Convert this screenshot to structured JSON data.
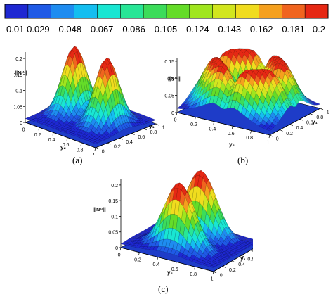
{
  "colorbar": {
    "ticks": [
      "0.01",
      "0.029",
      "0.048",
      "0.067",
      "0.086",
      "0.105",
      "0.124",
      "0.143",
      "0.162",
      "0.181",
      "0.2"
    ],
    "colors": [
      "#1e28d2",
      "#1f5ae6",
      "#1e8cf0",
      "#14bef0",
      "#19e6d2",
      "#28e696",
      "#3cdc5a",
      "#64dc28",
      "#a0e61e",
      "#d2e61e",
      "#f0dc1e",
      "#f5a01e",
      "#f0641e",
      "#e62814"
    ]
  },
  "chart_data": [
    {
      "type": "surface",
      "panel_label": "(a)",
      "zlabel": "||N¹¹||",
      "xlabel": "y₂",
      "ylabel": "y₁",
      "x_ticks": [
        "0",
        "0.2",
        "0.4",
        "0.6",
        "0.8",
        "1"
      ],
      "y_ticks": [
        "0",
        "0.2",
        "0.4",
        "0.6",
        "0.8",
        "1"
      ],
      "z_ticks": [
        "0",
        "0.05",
        "0.1",
        "0.15",
        "0.2"
      ],
      "zlim": [
        0,
        0.22
      ],
      "shape": "two peaks along y₂ at y₂≈0.25 and y₂≈0.75, centered y₁≈0.5",
      "peak_value": 0.21
    },
    {
      "type": "surface",
      "panel_label": "(b)",
      "zlabel": "||N¹²||",
      "xlabel": "y₂",
      "ylabel": "y₁",
      "x_ticks": [
        "0",
        "0.2",
        "0.4",
        "0.6",
        "0.8",
        "1"
      ],
      "y_ticks": [
        "0",
        "0.2",
        "0.4",
        "0.6",
        "0.8",
        "1"
      ],
      "z_ticks": [
        "0",
        "0.05",
        "0.1",
        "0.15"
      ],
      "zlim": [
        0,
        0.16
      ],
      "shape": "four lobes arranged as a ring with a cross-shaped valley",
      "peak_value": 0.14
    },
    {
      "type": "surface",
      "panel_label": "(c)",
      "zlabel": "||N²²||",
      "xlabel": "y₂",
      "ylabel": "y₁",
      "x_ticks": [
        "0",
        "0.2",
        "0.4",
        "0.6",
        "0.8",
        "1"
      ],
      "y_ticks": [
        "0",
        "0.2",
        "0.4",
        "0.6",
        "0.8",
        "1"
      ],
      "z_ticks": [
        "0",
        "0.05",
        "0.1",
        "0.15",
        "0.2"
      ],
      "zlim": [
        0,
        0.22
      ],
      "shape": "two peaks along y₁ at y₁≈0.25 and y₁≈0.75, centered y₂≈0.5",
      "peak_value": 0.21
    }
  ]
}
